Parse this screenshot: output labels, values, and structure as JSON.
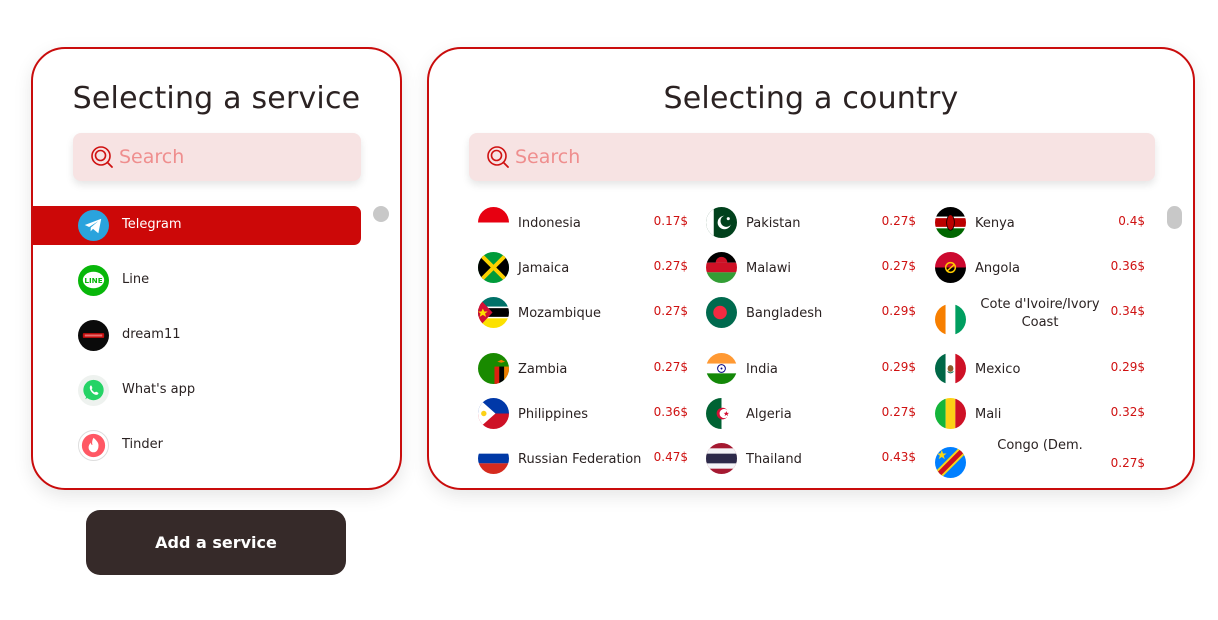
{
  "services_panel": {
    "title": "Selecting a service",
    "search_placeholder": "Search",
    "items": [
      {
        "label": "Telegram",
        "icon": "telegram-icon",
        "active": true
      },
      {
        "label": "Line",
        "icon": "line-icon",
        "active": false
      },
      {
        "label": "dream11",
        "icon": "dream11-icon",
        "active": false
      },
      {
        "label": "What's app",
        "icon": "whatsapp-icon",
        "active": false
      },
      {
        "label": "Tinder",
        "icon": "tinder-icon",
        "active": false
      }
    ]
  },
  "countries_panel": {
    "title": "Selecting a country",
    "search_placeholder": "Search",
    "rows": [
      [
        {
          "name": "Indonesia",
          "price": "0.17$",
          "flag": "indonesia-flag-icon"
        },
        {
          "name": "Pakistan",
          "price": "0.27$",
          "flag": "pakistan-flag-icon"
        },
        {
          "name": "Kenya",
          "price": "0.4$",
          "flag": "kenya-flag-icon"
        }
      ],
      [
        {
          "name": "Jamaica",
          "price": "0.27$",
          "flag": "jamaica-flag-icon"
        },
        {
          "name": "Malawi",
          "price": "0.27$",
          "flag": "malawi-flag-icon"
        },
        {
          "name": "Angola",
          "price": "0.36$",
          "flag": "angola-flag-icon"
        }
      ],
      [
        {
          "name": "Mozambique",
          "price": "0.27$",
          "flag": "mozambique-flag-icon"
        },
        {
          "name": "Bangladesh",
          "price": "0.29$",
          "flag": "bangladesh-flag-icon"
        },
        {
          "name": "Cote d'Ivoire/Ivory Coast",
          "price": "0.34$",
          "flag": "ivory-coast-flag-icon"
        }
      ],
      [
        {
          "name": "Zambia",
          "price": "0.27$",
          "flag": "zambia-flag-icon"
        },
        {
          "name": "India",
          "price": "0.29$",
          "flag": "india-flag-icon"
        },
        {
          "name": "Mexico",
          "price": "0.29$",
          "flag": "mexico-flag-icon"
        }
      ],
      [
        {
          "name": "Philippines",
          "price": "0.36$",
          "flag": "philippines-flag-icon"
        },
        {
          "name": "Algeria",
          "price": "0.27$",
          "flag": "algeria-flag-icon"
        },
        {
          "name": "Mali",
          "price": "0.32$",
          "flag": "mali-flag-icon"
        }
      ],
      [
        {
          "name": "Russian Federation",
          "price": "0.47$",
          "flag": "russia-flag-icon"
        },
        {
          "name": "Thailand",
          "price": "0.43$",
          "flag": "thailand-flag-icon"
        },
        {
          "name": "Congo (Dem.",
          "price": "0.27$",
          "flag": "congo-dem-flag-icon"
        }
      ]
    ]
  },
  "add_button_label": "Add a service",
  "colors": {
    "accent": "#cc0808",
    "search_bg": "#f7e3e3",
    "button_bg": "#362a29",
    "price": "#cf1111"
  }
}
